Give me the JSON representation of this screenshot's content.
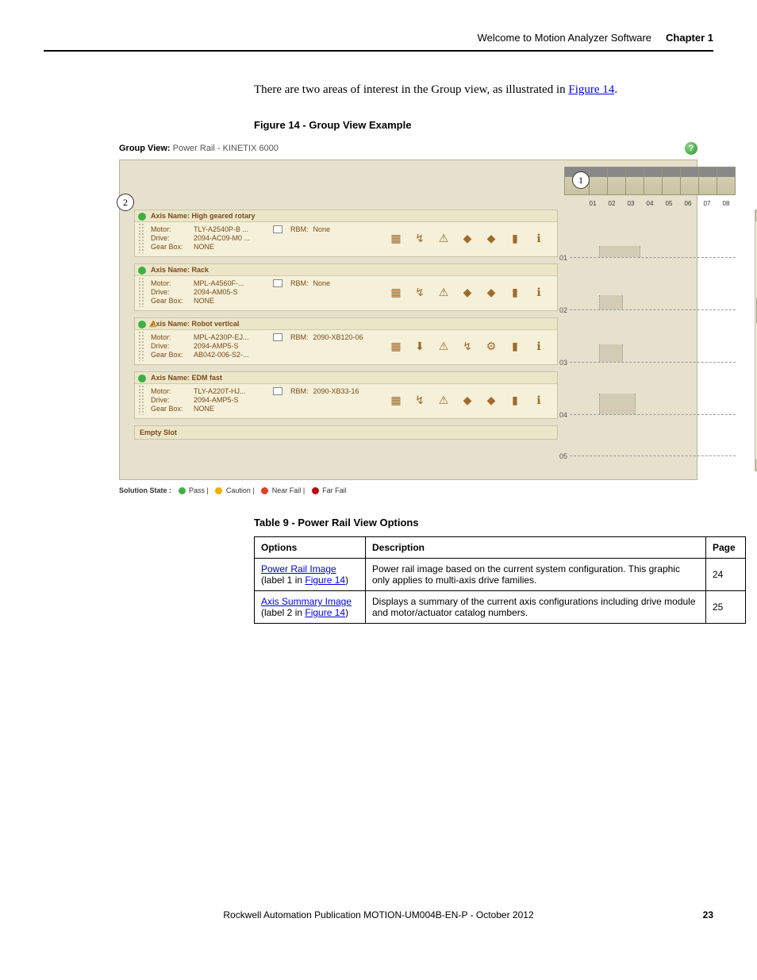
{
  "header": {
    "title": "Welcome to Motion Analyzer Software",
    "chapter": "Chapter 1"
  },
  "intro": {
    "text_before": "There are two areas of interest in the Group view, as illustrated in ",
    "link": "Figure 14",
    "text_after": "."
  },
  "figure_caption": "Figure 14 - Group View Example",
  "groupview": {
    "title_bold": "Group View:",
    "title_rest": "Power Rail - KINETIX 6000",
    "rail_numbers": [
      "",
      "01",
      "02",
      "03",
      "04",
      "05",
      "06",
      "07",
      "08"
    ],
    "callout1": "1",
    "callout2": "2",
    "axes": [
      {
        "state": "pass",
        "warn": false,
        "name": "Axis Name: High geared rotary",
        "motor": "TLY-A2540P-B ...",
        "rbm": "None",
        "drive": "2094-AC09-M0 ...",
        "gearbox": "NONE",
        "slot": "01"
      },
      {
        "state": "pass",
        "warn": false,
        "name": "Axis Name: Rack",
        "motor": "MPL-A4560F-...",
        "rbm": "None",
        "drive": "2094-AM05-S",
        "gearbox": "NONE",
        "slot": "02"
      },
      {
        "state": "pass",
        "warn": true,
        "name": "Axis Name: Robot vertical",
        "motor": "MPL-A230P-EJ...",
        "rbm": "2090-XB120-06",
        "drive": "2094-AMP5-S",
        "gearbox": "AB042-006-S2-...",
        "slot": "03"
      },
      {
        "state": "pass",
        "warn": false,
        "name": "Axis Name: EDM fast",
        "motor": "TLY-A220T-HJ...",
        "rbm": "2090-XB33-16",
        "drive": "2094-AMP5-S",
        "gearbox": "NONE",
        "slot": "04"
      }
    ],
    "empty_slot": "Empty Slot",
    "extra_slots": [
      "05"
    ]
  },
  "solution_state": {
    "label": "Solution State :",
    "items": [
      {
        "color": "#3cb043",
        "text": "Pass"
      },
      {
        "color": "#f0b000",
        "text": "Caution"
      },
      {
        "color": "#e04020",
        "text": "Near Fail"
      },
      {
        "color": "#b01010",
        "text": "Far Fail"
      }
    ]
  },
  "table_caption": "Table 9 - Power Rail View Options",
  "table": {
    "headers": [
      "Options",
      "Description",
      "Page"
    ],
    "rows": [
      {
        "opt_link": "Power Rail Image",
        "opt_rest_a": "(label 1 in ",
        "opt_rest_link": "Figure 14",
        "opt_rest_b": ")",
        "desc": "Power rail image based on the current system configuration. This graphic only applies to multi-axis drive families.",
        "page": "24"
      },
      {
        "opt_link": "Axis Summary Image",
        "opt_rest_a": "(label 2 in ",
        "opt_rest_link": "Figure 14",
        "opt_rest_b": ")",
        "desc": "Displays a summary of the current axis configurations including drive module and motor/actuator catalog numbers.",
        "page": "25"
      }
    ]
  },
  "footer": {
    "publication": "Rockwell Automation Publication MOTION-UM004B-EN-P - October 2012",
    "page": "23"
  },
  "labels": {
    "motor": "Motor:",
    "rbm": "RBM:",
    "drive": "Drive:",
    "gearbox": "Gear Box:"
  }
}
